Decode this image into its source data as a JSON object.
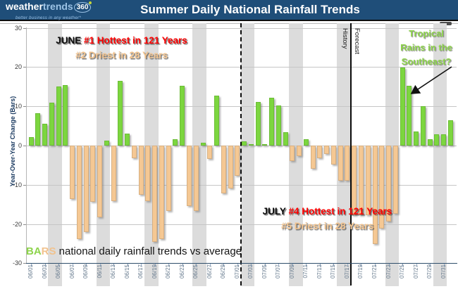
{
  "header": {
    "title": "Summer Daily National Rainfall Trends",
    "logo": {
      "part1": "weather",
      "part2": "trends",
      "part3": "360",
      "tagline": "better business in any weather*"
    }
  },
  "notes": {
    "june": {
      "prefix": "JUNE",
      "line1": "#1 Hottest in 121 Years",
      "line2": "#2 Driest in 28 Years"
    },
    "july": {
      "prefix": "JULY",
      "line1": "#4 Hottest in 121 Years",
      "line2": "#5 Driest in 28 Years"
    },
    "tropical": {
      "line1": "Tropical",
      "line2": "Rains in the",
      "line3": "Southeast?"
    }
  },
  "legend": {
    "ba": "BA",
    "rs": "RS",
    "rest": " national daily rainfall trends vs average"
  },
  "divider_labels": {
    "history": "History",
    "forecast": "Forecast"
  },
  "chart_data": {
    "type": "bar",
    "title": "Summer Daily National Rainfall Trends",
    "xlabel": "",
    "ylabel": "Year-Over-Year Change (Bars)",
    "ylim": [
      -30,
      30
    ],
    "yticks": [
      30,
      20,
      10,
      0,
      -10,
      -20,
      -30
    ],
    "grid": "horizontal",
    "positive_color": "#7cd63f",
    "negative_color": "#f5c893",
    "weekend_shade_color": "#dcdcdc",
    "dates": [
      "06/01",
      "06/02",
      "06/03",
      "06/04",
      "06/05",
      "06/06",
      "06/07",
      "06/08",
      "06/09",
      "06/10",
      "06/11",
      "06/12",
      "06/13",
      "06/14",
      "06/15",
      "06/16",
      "06/17",
      "06/18",
      "06/19",
      "06/20",
      "06/21",
      "06/22",
      "06/23",
      "06/24",
      "06/25",
      "06/26",
      "06/27",
      "06/28",
      "06/29",
      "06/30",
      "07/01",
      "07/02",
      "07/03",
      "07/04",
      "07/05",
      "07/06",
      "07/07",
      "07/08",
      "07/09",
      "07/10",
      "07/11",
      "07/12",
      "07/13",
      "07/14",
      "07/15",
      "07/16",
      "07/17",
      "07/18",
      "07/19",
      "07/20",
      "07/21",
      "07/22",
      "07/23",
      "07/24",
      "07/25",
      "07/26",
      "07/27",
      "07/28",
      "07/29",
      "07/30",
      "07/31",
      "08/01"
    ],
    "values": [
      2.2,
      8.3,
      5.6,
      11,
      15,
      15.5,
      -13.7,
      -23.8,
      -22.1,
      -14.3,
      -18.2,
      1.3,
      -14.2,
      16.5,
      3,
      -3.2,
      -12.5,
      -14.2,
      -24.5,
      -23.8,
      -16.7,
      1.6,
      15.2,
      -15.5,
      -16.6,
      0.7,
      -3.4,
      12.8,
      -12.1,
      -11,
      -7.7,
      1.1,
      0.4,
      11.2,
      0.3,
      12.1,
      10.2,
      3.4,
      -4,
      -2.6,
      1.6,
      -5.9,
      -3.2,
      -2.2,
      -4.8,
      -8.9,
      -8.9,
      -17.8,
      -17.8,
      -17.8,
      -25.1,
      -21.2,
      -19.4,
      -17.3,
      19.9,
      15.2,
      3.5,
      10,
      1.7,
      2.8,
      2.8,
      6.4
    ],
    "x_tick_labels": [
      "06/01",
      "06/03",
      "06/05",
      "06/07",
      "06/09",
      "06/11",
      "06/13",
      "06/15",
      "06/17",
      "06/19",
      "06/21",
      "06/23",
      "06/25",
      "06/27",
      "06/29",
      "07/01",
      "07/03",
      "07/05",
      "07/07",
      "07/09",
      "07/11",
      "07/13",
      "07/15",
      "07/17",
      "07/19",
      "07/21",
      "07/23",
      "07/25",
      "07/27",
      "07/29",
      "07/31"
    ],
    "weekend_pairs": [
      [
        "06/04",
        "06/05"
      ],
      [
        "06/11",
        "06/12"
      ],
      [
        "06/18",
        "06/19"
      ],
      [
        "06/25",
        "06/26"
      ],
      [
        "07/02",
        "07/03"
      ],
      [
        "07/09",
        "07/10"
      ],
      [
        "07/16",
        "07/17"
      ],
      [
        "07/23",
        "07/24"
      ],
      [
        "07/30",
        "07/31"
      ]
    ],
    "dashed_divider_between": [
      "07/01",
      "07/02"
    ],
    "history_forecast_divider_between": [
      "07/17",
      "07/18"
    ],
    "legend_note": "BARS national daily rainfall trends vs average"
  }
}
